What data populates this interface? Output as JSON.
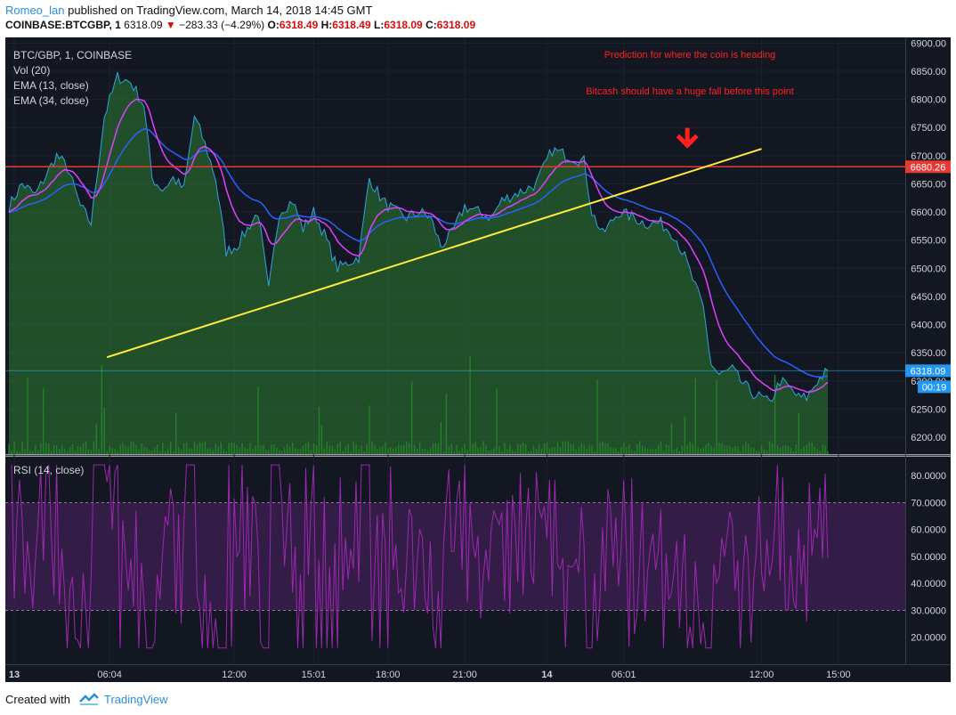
{
  "header": {
    "author": "Romeo_lan",
    "published_text": "published on TradingView.com, March 14, 2018 14:45 GMT",
    "symbol": "COINBASE:BTCGBP, 1",
    "price": "6318.09",
    "change_arrow": "▼",
    "change": "−283.33 (−4.29%)",
    "o_label": "O:",
    "o_val": "6318.49",
    "h_label": "H:",
    "h_val": "6318.49",
    "l_label": "L:",
    "l_val": "6318.09",
    "c_label": "C:",
    "c_val": "6318.09"
  },
  "footer": {
    "created_with": "Created with",
    "brand": "TradingView"
  },
  "colors": {
    "background": "#131722",
    "price_line": "#2ba6e0",
    "ema_fast": "#e040fb",
    "ema_slow": "#2962ff",
    "area_fill": "#2e7d32",
    "volume": "#1faa1f",
    "rsi": "#9c27b0",
    "rsi_band": "#3a1e4e",
    "resistance": "#e53935",
    "trendline": "#ffeb3b",
    "annotation": "#ff2020"
  },
  "chart_data": [
    {
      "type": "area",
      "title": "BTC/GBP, 1, COINBASE",
      "indicators": [
        "Vol (20)",
        "EMA (13, close)",
        "EMA (34, close)"
      ],
      "ylim": [
        6170,
        6910
      ],
      "yticks": [
        "6900.00",
        "6850.00",
        "6800.00",
        "6750.00",
        "6700.00",
        "6650.00",
        "6600.00",
        "6550.00",
        "6500.00",
        "6450.00",
        "6400.00",
        "6350.00",
        "6300.00",
        "6250.00",
        "6200.00"
      ],
      "ytick_values": [
        6900,
        6850,
        6800,
        6750,
        6700,
        6650,
        6600,
        6550,
        6500,
        6450,
        6400,
        6350,
        6300,
        6250,
        6200
      ],
      "x_labels": [
        "13",
        "06:04",
        "12:00",
        "15:01",
        "18:00",
        "21:00",
        "14",
        "06:01",
        "12:00",
        "15:00"
      ],
      "x_label_index": [
        2,
        38,
        85,
        115,
        143,
        172,
        203,
        232,
        284,
        313
      ],
      "n_points": 310,
      "keypoints": [
        [
          0,
          6610
        ],
        [
          5,
          6650
        ],
        [
          10,
          6630
        ],
        [
          18,
          6700
        ],
        [
          22,
          6680
        ],
        [
          27,
          6610
        ],
        [
          31,
          6580
        ],
        [
          36,
          6770
        ],
        [
          41,
          6840
        ],
        [
          46,
          6830
        ],
        [
          51,
          6790
        ],
        [
          54,
          6660
        ],
        [
          58,
          6640
        ],
        [
          62,
          6660
        ],
        [
          66,
          6640
        ],
        [
          70,
          6770
        ],
        [
          74,
          6720
        ],
        [
          78,
          6660
        ],
        [
          82,
          6530
        ],
        [
          86,
          6540
        ],
        [
          90,
          6570
        ],
        [
          94,
          6600
        ],
        [
          98,
          6460
        ],
        [
          102,
          6600
        ],
        [
          107,
          6620
        ],
        [
          111,
          6570
        ],
        [
          115,
          6600
        ],
        [
          119,
          6560
        ],
        [
          124,
          6500
        ],
        [
          128,
          6510
        ],
        [
          132,
          6520
        ],
        [
          136,
          6660
        ],
        [
          141,
          6620
        ],
        [
          146,
          6600
        ],
        [
          150,
          6590
        ],
        [
          155,
          6600
        ],
        [
          159,
          6590
        ],
        [
          163,
          6540
        ],
        [
          167,
          6560
        ],
        [
          172,
          6610
        ],
        [
          177,
          6600
        ],
        [
          182,
          6590
        ],
        [
          186,
          6620
        ],
        [
          190,
          6630
        ],
        [
          195,
          6640
        ],
        [
          199,
          6650
        ],
        [
          205,
          6710
        ],
        [
          211,
          6700
        ],
        [
          217,
          6690
        ],
        [
          220,
          6600
        ],
        [
          224,
          6560
        ],
        [
          230,
          6600
        ],
        [
          236,
          6590
        ],
        [
          240,
          6580
        ],
        [
          246,
          6580
        ],
        [
          251,
          6560
        ],
        [
          255,
          6520
        ],
        [
          258,
          6480
        ],
        [
          262,
          6430
        ],
        [
          265,
          6330
        ],
        [
          268,
          6310
        ],
        [
          273,
          6320
        ],
        [
          276,
          6300
        ],
        [
          280,
          6280
        ],
        [
          284,
          6270
        ],
        [
          287,
          6260
        ],
        [
          291,
          6300
        ],
        [
          294,
          6290
        ],
        [
          298,
          6270
        ],
        [
          301,
          6270
        ],
        [
          305,
          6300
        ],
        [
          309,
          6318
        ]
      ],
      "resistance_level": 6680.26,
      "last_price": 6318.09,
      "countdown": "00:19",
      "trendline": {
        "from": [
          37,
          6342
        ],
        "to": [
          284,
          6712
        ]
      },
      "annotations": [
        "Prediction for where the coin is heading",
        "Bitcash should have a huge fall before this point"
      ],
      "arrow_at": [
        256,
        6720
      ]
    },
    {
      "type": "line",
      "title": "RSI (14, close)",
      "ylim": [
        10,
        87
      ],
      "yticks": [
        "80.0000",
        "70.0000",
        "60.0000",
        "50.0000",
        "40.0000",
        "30.0000",
        "20.0000"
      ],
      "ytick_values": [
        80,
        70,
        60,
        50,
        40,
        30,
        20
      ],
      "band": [
        30,
        70
      ]
    }
  ]
}
